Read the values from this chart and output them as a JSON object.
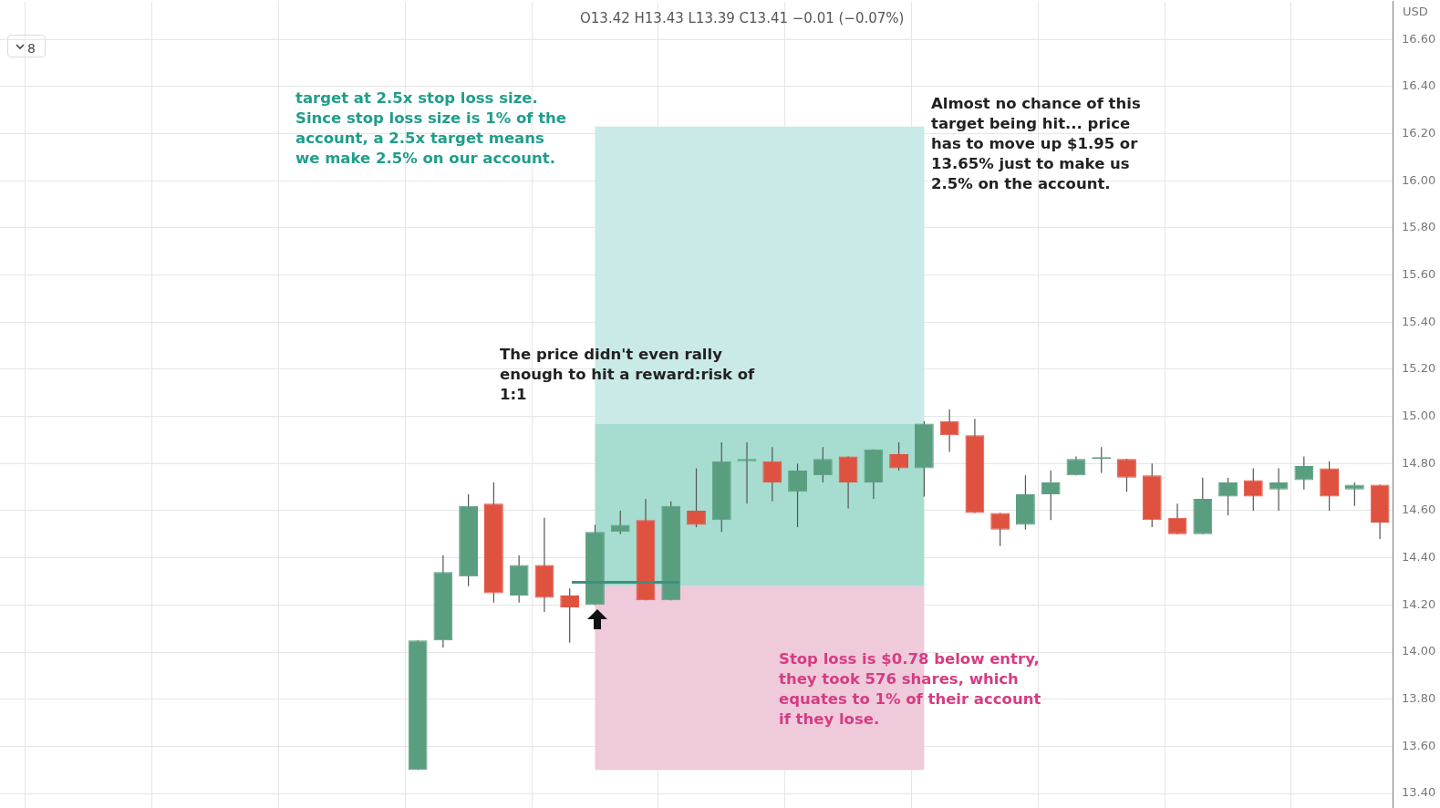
{
  "chart_data": {
    "type": "candlestick",
    "ylabel": "USD",
    "categories": [
      null,
      null,
      null,
      null,
      null,
      null,
      null,
      null,
      null,
      null,
      null,
      null,
      null,
      null,
      null,
      null,
      null,
      null,
      null,
      null,
      null,
      null,
      null,
      null,
      null,
      null,
      null,
      null,
      null,
      null,
      null,
      null,
      null,
      null,
      null,
      null,
      null,
      null,
      null,
      null,
      null,
      null,
      null,
      null,
      null,
      null,
      null,
      null,
      null,
      null,
      null,
      null,
      null,
      null,
      null
    ],
    "ohlc": [
      null,
      null,
      null,
      null,
      null,
      null,
      null,
      null,
      null,
      null,
      null,
      null,
      null,
      null,
      null,
      null,
      [
        13.5,
        14.05,
        13.5,
        14.05
      ],
      [
        14.05,
        14.41,
        14.02,
        14.34
      ],
      [
        14.32,
        14.67,
        14.28,
        14.62
      ],
      [
        14.63,
        14.72,
        14.21,
        14.25
      ],
      [
        14.24,
        14.41,
        14.21,
        14.37
      ],
      [
        14.37,
        14.57,
        14.17,
        14.23
      ],
      [
        14.24,
        14.27,
        14.04,
        14.19
      ],
      [
        14.2,
        14.54,
        14.2,
        14.51
      ],
      [
        14.51,
        14.6,
        14.5,
        14.54
      ],
      [
        14.56,
        14.65,
        14.22,
        14.22
      ],
      [
        14.22,
        14.64,
        14.22,
        14.62
      ],
      [
        14.6,
        14.78,
        14.53,
        14.54
      ],
      [
        14.56,
        14.89,
        14.51,
        14.81
      ],
      [
        14.81,
        14.89,
        14.63,
        14.82
      ],
      [
        14.81,
        14.87,
        14.64,
        14.72
      ],
      [
        14.68,
        14.8,
        14.53,
        14.77
      ],
      [
        14.75,
        14.87,
        14.72,
        14.82
      ],
      [
        14.83,
        14.83,
        14.61,
        14.72
      ],
      [
        14.72,
        14.86,
        14.65,
        14.86
      ],
      [
        14.84,
        14.89,
        14.77,
        14.78
      ],
      [
        14.78,
        14.98,
        14.66,
        14.97
      ],
      [
        14.98,
        15.03,
        14.85,
        14.92
      ],
      [
        14.92,
        14.99,
        14.59,
        14.59
      ],
      [
        14.59,
        14.59,
        14.45,
        14.52
      ],
      [
        14.54,
        14.75,
        14.52,
        14.67
      ],
      [
        14.67,
        14.77,
        14.56,
        14.72
      ],
      [
        14.75,
        14.83,
        14.75,
        14.82
      ],
      [
        14.82,
        14.87,
        14.76,
        14.82
      ],
      [
        14.82,
        14.82,
        14.68,
        14.74
      ],
      [
        14.75,
        14.8,
        14.53,
        14.56
      ],
      [
        14.57,
        14.63,
        14.5,
        14.5
      ],
      [
        14.5,
        14.74,
        14.5,
        14.65
      ],
      [
        14.66,
        14.74,
        14.58,
        14.72
      ],
      [
        14.73,
        14.78,
        14.6,
        14.66
      ],
      [
        14.69,
        14.78,
        14.6,
        14.72
      ],
      [
        14.73,
        14.83,
        14.69,
        14.79
      ],
      [
        14.78,
        14.81,
        14.6,
        14.66
      ],
      [
        14.69,
        14.72,
        14.62,
        14.71
      ],
      [
        14.71,
        14.71,
        14.48,
        14.55
      ]
    ],
    "colors": [
      null,
      null,
      null,
      null,
      null,
      null,
      null,
      null,
      null,
      null,
      null,
      null,
      null,
      null,
      null,
      null,
      "#5a9e80",
      "#5a9e80",
      "#5a9e80",
      "#e05240",
      "#5a9e80",
      "#e05240",
      "#e05240",
      "#5a9e80",
      "#5a9e80",
      "#e05240",
      "#5a9e80",
      "#e05240",
      "#5a9e80",
      "#5a9e80",
      "#e05240",
      "#5a9e80",
      "#5a9e80",
      "#e05240",
      "#5a9e80",
      "#e05240",
      "#5a9e80",
      "#e05240",
      "#e05240",
      "#e05240",
      "#5a9e80",
      "#5a9e80",
      "#5a9e80",
      "#5a9e80",
      "#e05240",
      "#e05240",
      "#e05240",
      "#5a9e80",
      "#5a9e80",
      "#e05240",
      "#5a9e80",
      "#5a9e80",
      "#e05240",
      "#5a9e80",
      "#e05240"
    ],
    "ylim": [
      13.33,
      16.76
    ],
    "yticks": [
      {
        "value": 13.4,
        "label": "13.40"
      },
      {
        "value": 13.6,
        "label": "13.60"
      },
      {
        "value": 13.8,
        "label": "13.80"
      },
      {
        "value": 14,
        "label": "14.00"
      },
      {
        "value": 14.2,
        "label": "14.20"
      },
      {
        "value": 14.4,
        "label": "14.40"
      },
      {
        "value": 14.6,
        "label": "14.60"
      },
      {
        "value": 14.8,
        "label": "14.80"
      },
      {
        "value": 15,
        "label": "15.00"
      },
      {
        "value": 15.2,
        "label": "15.20"
      },
      {
        "value": 15.4,
        "label": "15.40"
      },
      {
        "value": 15.6,
        "label": "15.60"
      },
      {
        "value": 15.8,
        "label": "15.80"
      },
      {
        "value": 16,
        "label": "16.00"
      },
      {
        "value": 16.2,
        "label": "16.20"
      },
      {
        "value": 16.4,
        "label": "16.40"
      },
      {
        "value": 16.6,
        "label": "16.60"
      }
    ],
    "grid": true,
    "tick_labels": "y",
    "bands": [
      {
        "axis": "y",
        "from": 14.97,
        "to": 16.23,
        "color": "#c9eae6"
      },
      {
        "axis": "y",
        "from": 14.28,
        "to": 14.97,
        "color": "#a6ddd0"
      },
      {
        "axis": "y",
        "from": 13.5,
        "to": 14.28,
        "color": "#eecadb"
      }
    ],
    "annotations": [
      "target at 2.5x stop loss size. Since stop loss size is 1% of the account, a 2.5x target means we make 2.5% on our account.",
      "Almost no chance of this target being hit... price has to move up $1.95 or 13.65% just to make us 2.5% on the account.",
      "The price didn't even rally enough to hit a reward:risk of 1:1",
      "Stop loss is $0.78 below entry, they took 576 shares, which equates to 1% of their account if they lose.",
      "O13.42 H13.43 L13.39 C13.41 −0.01 (−0.07%)",
      "8"
    ]
  }
}
